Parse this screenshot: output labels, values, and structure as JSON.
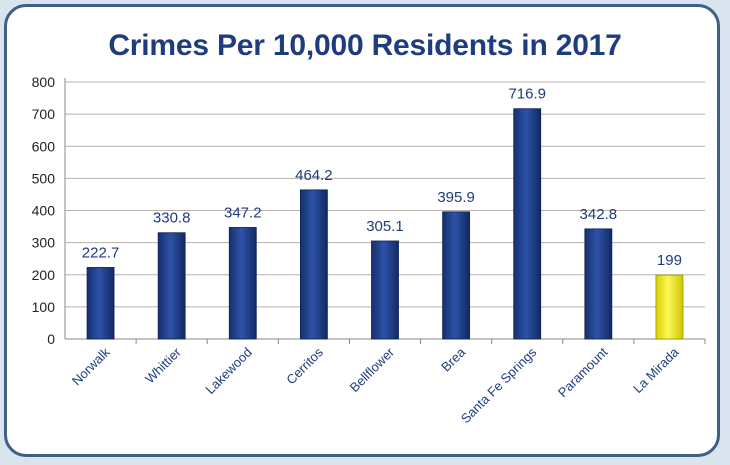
{
  "chart_data": {
    "type": "bar",
    "title": "Crimes Per 10,000 Residents in 2017",
    "xlabel": "",
    "ylabel": "",
    "ylim": [
      0,
      800
    ],
    "yticks": [
      "0",
      "100",
      "200",
      "300",
      "400",
      "500",
      "600",
      "700",
      "800"
    ],
    "grid": true,
    "categories": [
      "Norwalk",
      "Whittier",
      "Lakewood",
      "Cerritos",
      "Bellflower",
      "Brea",
      "Santa Fe Springs",
      "Paramount",
      "La Mirada"
    ],
    "values": [
      222.7,
      330.8,
      347.2,
      464.2,
      305.1,
      395.9,
      716.9,
      342.8,
      199
    ],
    "value_labels": [
      "222.7",
      "330.8",
      "347.2",
      "464.2",
      "305.1",
      "395.9",
      "716.9",
      "342.8",
      "199"
    ],
    "bar_color": "#1f3f8f",
    "highlight_color": "#f2ec1c",
    "highlight_category": "La Mirada"
  }
}
